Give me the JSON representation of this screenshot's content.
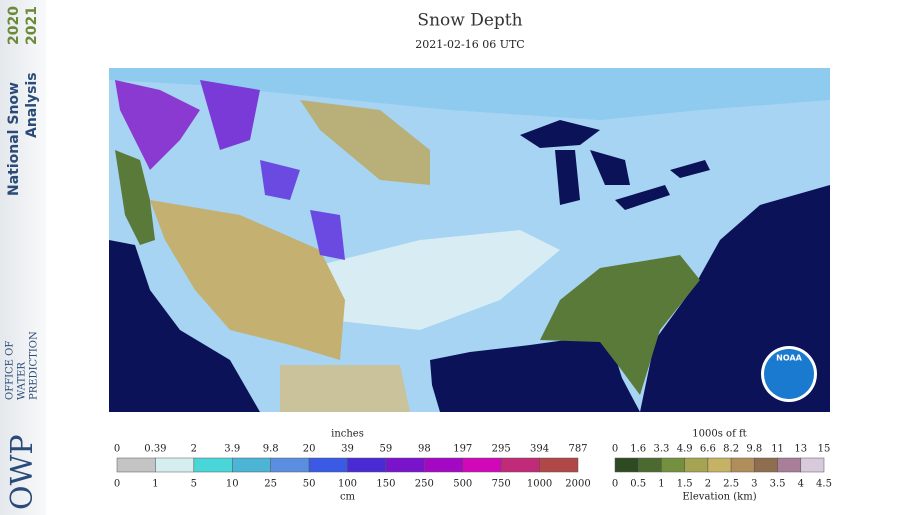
{
  "sidebar": {
    "title_lines": [
      "National Snow",
      "Analysis"
    ],
    "years": [
      "2020",
      "2021"
    ],
    "logo": "OWP",
    "org_lines": [
      "OFFICE OF",
      "WATER",
      "PREDICTION"
    ]
  },
  "header": {
    "title": "Snow Depth",
    "subtitle": "2021-02-16 06 UTC"
  },
  "map": {
    "logo": "NOAA"
  },
  "depth_legend": {
    "top_unit": "inches",
    "bottom_unit": "cm",
    "top_labels": [
      "0",
      "0.39",
      "2",
      "3.9",
      "9.8",
      "20",
      "39",
      "59",
      "98",
      "197",
      "295",
      "394",
      "787"
    ],
    "bottom_labels": [
      "0",
      "1",
      "5",
      "10",
      "25",
      "50",
      "100",
      "150",
      "250",
      "500",
      "750",
      "1000",
      "2000"
    ],
    "colors": [
      "#c4c4c4",
      "#d6eef0",
      "#48d6d8",
      "#4cb4d4",
      "#5a8ee0",
      "#3a5ae6",
      "#4a2ad2",
      "#7a14cc",
      "#a408c4",
      "#d008b8",
      "#c02a78",
      "#b04848"
    ]
  },
  "elevation_legend": {
    "top_unit": "1000s of ft",
    "bottom_unit": "Elevation (km)",
    "top_labels": [
      "0",
      "1.6",
      "3.3",
      "4.9",
      "6.6",
      "8.2",
      "9.8",
      "11",
      "13",
      "15"
    ],
    "bottom_labels": [
      "0",
      "0.5",
      "1",
      "1.5",
      "2",
      "2.5",
      "3",
      "3.5",
      "4",
      "4.5"
    ],
    "colors": [
      "#2e4a22",
      "#4c6a30",
      "#74903e",
      "#a4a452",
      "#c6b264",
      "#b08e5a",
      "#8e6e4e",
      "#a87e98",
      "#d8cadc"
    ]
  }
}
